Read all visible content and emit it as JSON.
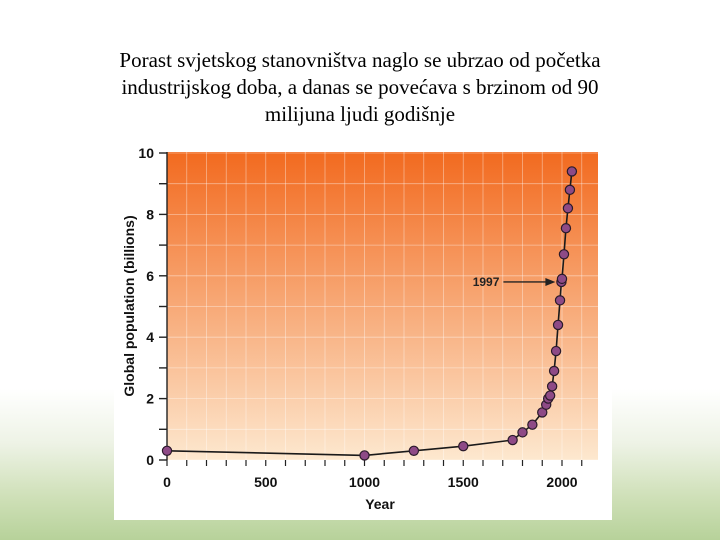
{
  "caption": {
    "line1": "Porast svjetskog stanovništva naglo se ubrzao od početka",
    "line2": "industrijskog doba, a danas se povećava s brzinom od 90",
    "line3": "milijuna ljudi godišnje"
  },
  "colors": {
    "plot_top": "#f26a1f",
    "plot_bottom": "#fde8cf",
    "line": "#1a1a1a",
    "point_fill": "#8e4a86",
    "point_stroke": "#2a1a2a"
  },
  "chart_data": {
    "type": "line",
    "title": "",
    "xlabel": "Year",
    "ylabel": "Global population (billions)",
    "xlim": [
      0,
      2100
    ],
    "ylim": [
      0,
      10
    ],
    "x_ticks": [
      "0",
      "500",
      "1000",
      "1500",
      "2000"
    ],
    "y_ticks": [
      "0",
      "2",
      "4",
      "6",
      "8",
      "10"
    ],
    "grid": true,
    "series": [
      {
        "x": [
          0,
          1000,
          1250,
          1500,
          1750,
          1800,
          1850,
          1900,
          1920,
          1930,
          1940,
          1950,
          1960,
          1970,
          1980,
          1990,
          1997,
          2000,
          2010,
          2020,
          2030,
          2040,
          2050
        ],
        "y": [
          0.3,
          0.15,
          0.3,
          0.45,
          0.65,
          0.9,
          1.15,
          1.55,
          1.8,
          2.0,
          2.1,
          2.4,
          2.9,
          3.55,
          4.4,
          5.2,
          5.8,
          5.9,
          6.7,
          7.55,
          8.2,
          8.8,
          9.4
        ]
      }
    ],
    "annotation": {
      "label": "1997",
      "x": 1997,
      "y": 5.8
    }
  }
}
